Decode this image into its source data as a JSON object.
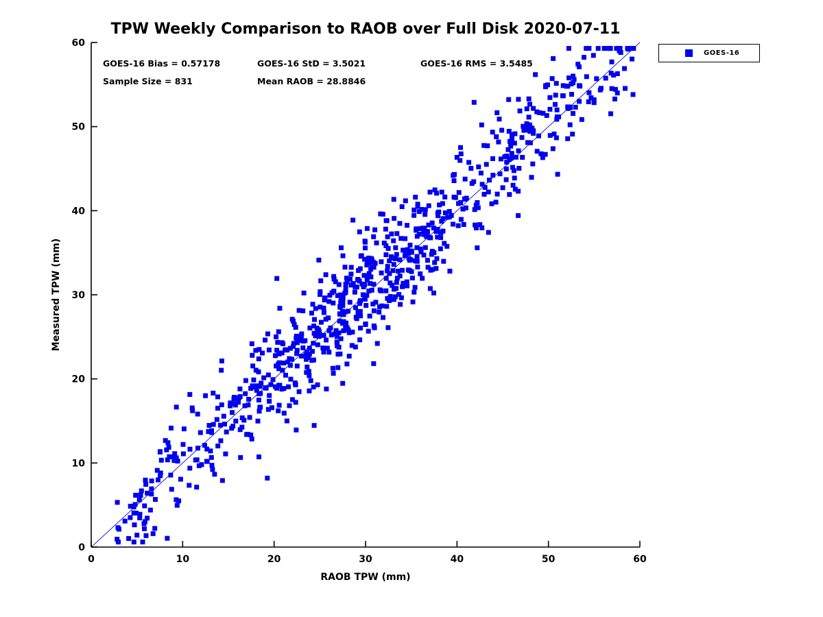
{
  "chart_data": {
    "type": "scatter",
    "title": "TPW Weekly Comparison to RAOB over Full Disk 2020-07-11",
    "xlabel": "RAOB TPW (mm)",
    "ylabel": "Measured TPW (mm)",
    "xlim": [
      0,
      60
    ],
    "ylim": [
      0,
      60
    ],
    "x_ticks": [
      0,
      10,
      20,
      30,
      40,
      50,
      60
    ],
    "y_ticks": [
      0,
      10,
      20,
      30,
      40,
      50,
      60
    ],
    "grid": false,
    "stats": {
      "bias": 0.57178,
      "std": 3.5021,
      "rms": 3.5485,
      "sample_size": 831,
      "mean_raob": 28.8846
    },
    "stats_display": {
      "bias": "GOES-16 Bias = 0.57178",
      "std": "GOES-16 StD = 3.5021",
      "rms": "GOES-16 RMS = 3.5485",
      "sample_size": "Sample Size = 831",
      "mean_raob": "Mean RAOB = 28.8846"
    },
    "legend": [
      {
        "label": "GOES-16",
        "marker": "square",
        "color": "#0000ee",
        "position": "top-right-outside"
      }
    ],
    "series": [
      {
        "name": "GOES-16",
        "marker": "square",
        "marker_size_px": 7,
        "color": "#0000ee",
        "n_points": 831,
        "generator": {
          "seed": 20200711,
          "x_min": 2.5,
          "x_max": 59.5,
          "x_center": 30,
          "x_center_spread": 9.5,
          "uniform_fraction": 0.55,
          "slope": 1,
          "intercept": 0.57178,
          "noise_std": 3.4,
          "y_min": 0.6,
          "y_max": 59.3
        }
      }
    ],
    "reference_line": {
      "from": [
        0,
        0
      ],
      "to": [
        60,
        60
      ],
      "color": "#2222dd",
      "width": 1
    },
    "axis_color": "#000000"
  }
}
